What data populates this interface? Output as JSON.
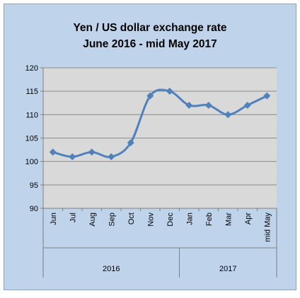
{
  "chart_data": {
    "type": "line",
    "title_lines": [
      "Yen / US dollar exchange rate",
      "June 2016 - mid May 2017"
    ],
    "xlabel": "",
    "ylabel": "",
    "categories": [
      "Jun",
      "Jul",
      "Aug",
      "Sep",
      "Oct",
      "Nov",
      "Dec",
      "Jan",
      "Feb",
      "Mar",
      "Apr",
      "mid May"
    ],
    "groups": [
      {
        "label": "2016",
        "count": 7
      },
      {
        "label": "2017",
        "count": 5
      }
    ],
    "series": [
      {
        "values": [
          102,
          101,
          102,
          101,
          104,
          114,
          115,
          112,
          112,
          110,
          112,
          114
        ]
      }
    ],
    "ylim": [
      90,
      120
    ],
    "yticks": [
      90,
      95,
      100,
      105,
      110,
      115,
      120
    ],
    "grid": true,
    "legend": "none",
    "colors": {
      "background": "#bfd3ea",
      "plot_area": "#d9d9d9",
      "line": "#4f81bd",
      "grid": "#8c8c8c"
    }
  }
}
